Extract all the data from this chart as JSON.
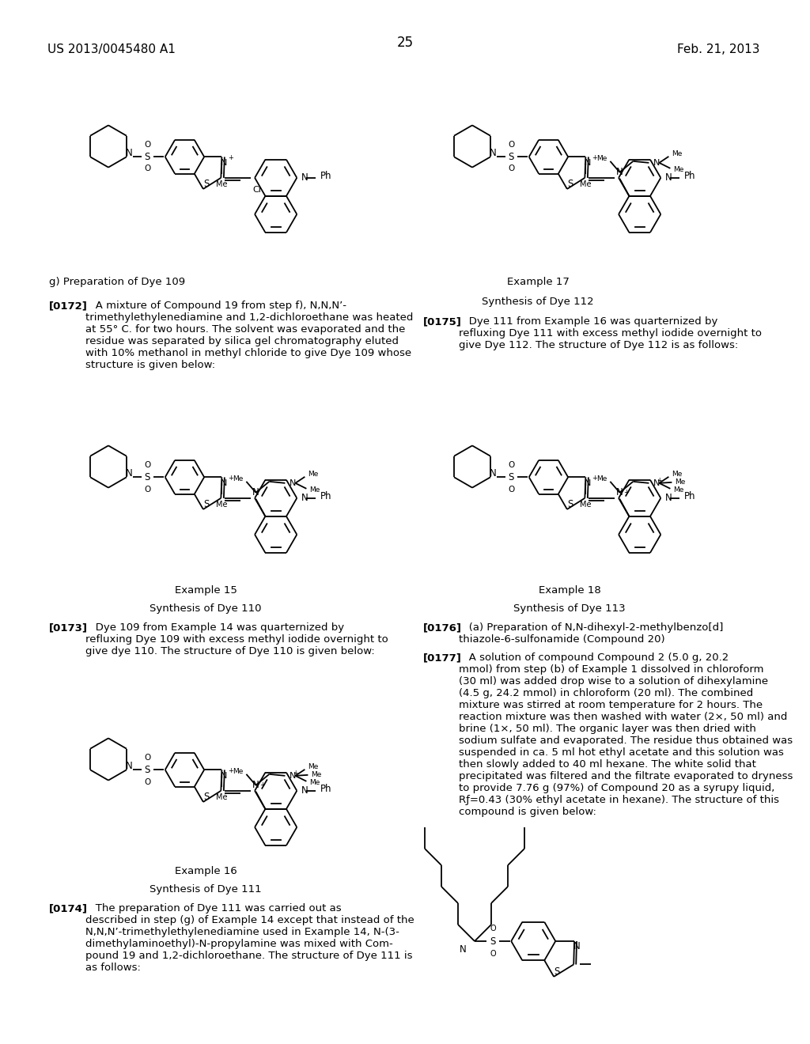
{
  "bg_color": "#ffffff",
  "header_left": "US 2013/0045480 A1",
  "header_right": "Feb. 21, 2013",
  "page_number": "25",
  "figsize": [
    10.24,
    13.2
  ],
  "dpi": 100
}
